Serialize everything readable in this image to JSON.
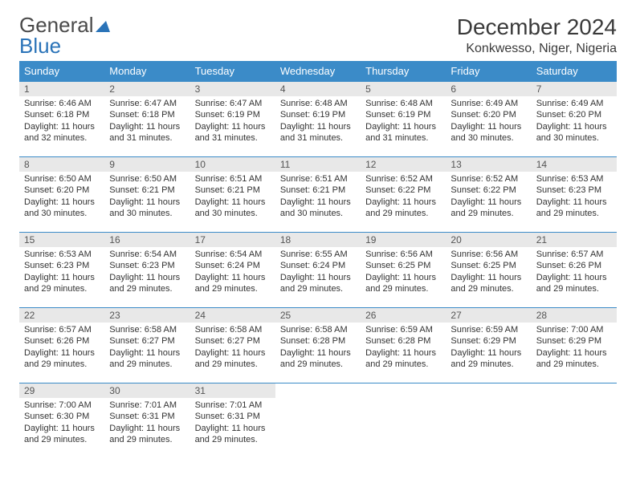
{
  "logo": {
    "word1": "General",
    "word2": "Blue"
  },
  "title": "December 2024",
  "location": "Konkwesso, Niger, Nigeria",
  "colors": {
    "header_bg": "#3b8bc8",
    "header_text": "#ffffff",
    "daynum_bg": "#e8e8e8",
    "row_border": "#3b8bc8",
    "body_text": "#333333",
    "logo_gray": "#4a4a4a",
    "logo_blue": "#2a73b8"
  },
  "day_headers": [
    "Sunday",
    "Monday",
    "Tuesday",
    "Wednesday",
    "Thursday",
    "Friday",
    "Saturday"
  ],
  "weeks": [
    [
      {
        "n": "1",
        "sr": "6:46 AM",
        "ss": "6:18 PM",
        "dl": "11 hours and 32 minutes."
      },
      {
        "n": "2",
        "sr": "6:47 AM",
        "ss": "6:18 PM",
        "dl": "11 hours and 31 minutes."
      },
      {
        "n": "3",
        "sr": "6:47 AM",
        "ss": "6:19 PM",
        "dl": "11 hours and 31 minutes."
      },
      {
        "n": "4",
        "sr": "6:48 AM",
        "ss": "6:19 PM",
        "dl": "11 hours and 31 minutes."
      },
      {
        "n": "5",
        "sr": "6:48 AM",
        "ss": "6:19 PM",
        "dl": "11 hours and 31 minutes."
      },
      {
        "n": "6",
        "sr": "6:49 AM",
        "ss": "6:20 PM",
        "dl": "11 hours and 30 minutes."
      },
      {
        "n": "7",
        "sr": "6:49 AM",
        "ss": "6:20 PM",
        "dl": "11 hours and 30 minutes."
      }
    ],
    [
      {
        "n": "8",
        "sr": "6:50 AM",
        "ss": "6:20 PM",
        "dl": "11 hours and 30 minutes."
      },
      {
        "n": "9",
        "sr": "6:50 AM",
        "ss": "6:21 PM",
        "dl": "11 hours and 30 minutes."
      },
      {
        "n": "10",
        "sr": "6:51 AM",
        "ss": "6:21 PM",
        "dl": "11 hours and 30 minutes."
      },
      {
        "n": "11",
        "sr": "6:51 AM",
        "ss": "6:21 PM",
        "dl": "11 hours and 30 minutes."
      },
      {
        "n": "12",
        "sr": "6:52 AM",
        "ss": "6:22 PM",
        "dl": "11 hours and 29 minutes."
      },
      {
        "n": "13",
        "sr": "6:52 AM",
        "ss": "6:22 PM",
        "dl": "11 hours and 29 minutes."
      },
      {
        "n": "14",
        "sr": "6:53 AM",
        "ss": "6:23 PM",
        "dl": "11 hours and 29 minutes."
      }
    ],
    [
      {
        "n": "15",
        "sr": "6:53 AM",
        "ss": "6:23 PM",
        "dl": "11 hours and 29 minutes."
      },
      {
        "n": "16",
        "sr": "6:54 AM",
        "ss": "6:23 PM",
        "dl": "11 hours and 29 minutes."
      },
      {
        "n": "17",
        "sr": "6:54 AM",
        "ss": "6:24 PM",
        "dl": "11 hours and 29 minutes."
      },
      {
        "n": "18",
        "sr": "6:55 AM",
        "ss": "6:24 PM",
        "dl": "11 hours and 29 minutes."
      },
      {
        "n": "19",
        "sr": "6:56 AM",
        "ss": "6:25 PM",
        "dl": "11 hours and 29 minutes."
      },
      {
        "n": "20",
        "sr": "6:56 AM",
        "ss": "6:25 PM",
        "dl": "11 hours and 29 minutes."
      },
      {
        "n": "21",
        "sr": "6:57 AM",
        "ss": "6:26 PM",
        "dl": "11 hours and 29 minutes."
      }
    ],
    [
      {
        "n": "22",
        "sr": "6:57 AM",
        "ss": "6:26 PM",
        "dl": "11 hours and 29 minutes."
      },
      {
        "n": "23",
        "sr": "6:58 AM",
        "ss": "6:27 PM",
        "dl": "11 hours and 29 minutes."
      },
      {
        "n": "24",
        "sr": "6:58 AM",
        "ss": "6:27 PM",
        "dl": "11 hours and 29 minutes."
      },
      {
        "n": "25",
        "sr": "6:58 AM",
        "ss": "6:28 PM",
        "dl": "11 hours and 29 minutes."
      },
      {
        "n": "26",
        "sr": "6:59 AM",
        "ss": "6:28 PM",
        "dl": "11 hours and 29 minutes."
      },
      {
        "n": "27",
        "sr": "6:59 AM",
        "ss": "6:29 PM",
        "dl": "11 hours and 29 minutes."
      },
      {
        "n": "28",
        "sr": "7:00 AM",
        "ss": "6:29 PM",
        "dl": "11 hours and 29 minutes."
      }
    ],
    [
      {
        "n": "29",
        "sr": "7:00 AM",
        "ss": "6:30 PM",
        "dl": "11 hours and 29 minutes."
      },
      {
        "n": "30",
        "sr": "7:01 AM",
        "ss": "6:31 PM",
        "dl": "11 hours and 29 minutes."
      },
      {
        "n": "31",
        "sr": "7:01 AM",
        "ss": "6:31 PM",
        "dl": "11 hours and 29 minutes."
      },
      null,
      null,
      null,
      null
    ]
  ],
  "labels": {
    "sunrise": "Sunrise:",
    "sunset": "Sunset:",
    "daylight": "Daylight:"
  }
}
